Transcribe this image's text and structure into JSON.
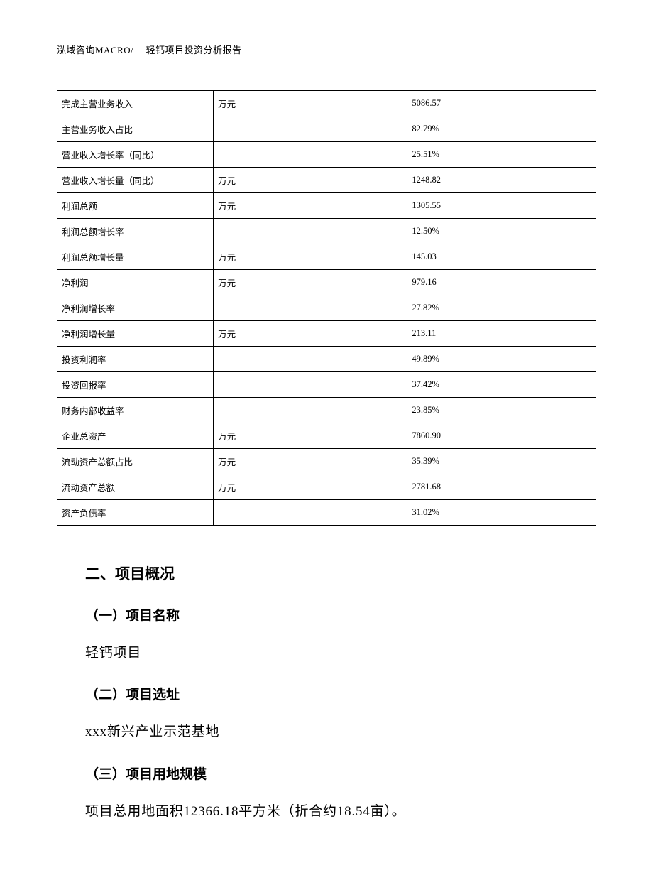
{
  "header": "泓域咨询MACRO/　 轻钙项目投资分析报告",
  "table": {
    "rows": [
      {
        "label": "完成主营业务收入",
        "unit": "万元",
        "value": "5086.57"
      },
      {
        "label": "主营业务收入占比",
        "unit": "",
        "value": "82.79%"
      },
      {
        "label": "营业收入增长率（同比）",
        "unit": "",
        "value": "25.51%"
      },
      {
        "label": "营业收入增长量（同比）",
        "unit": "万元",
        "value": "1248.82"
      },
      {
        "label": "利润总额",
        "unit": "万元",
        "value": "1305.55"
      },
      {
        "label": "利润总额增长率",
        "unit": "",
        "value": "12.50%"
      },
      {
        "label": "利润总额增长量",
        "unit": "万元",
        "value": "145.03"
      },
      {
        "label": "净利润",
        "unit": "万元",
        "value": "979.16"
      },
      {
        "label": "净利润增长率",
        "unit": "",
        "value": "27.82%"
      },
      {
        "label": "净利润增长量",
        "unit": "万元",
        "value": "213.11"
      },
      {
        "label": "投资利润率",
        "unit": "",
        "value": "49.89%"
      },
      {
        "label": "投资回报率",
        "unit": "",
        "value": "37.42%"
      },
      {
        "label": "财务内部收益率",
        "unit": "",
        "value": "23.85%"
      },
      {
        "label": "企业总资产",
        "unit": "万元",
        "value": "7860.90"
      },
      {
        "label": "流动资产总额占比",
        "unit": "万元",
        "value": "35.39%"
      },
      {
        "label": "流动资产总额",
        "unit": "万元",
        "value": "2781.68"
      },
      {
        "label": "资产负债率",
        "unit": "",
        "value": "31.02%"
      }
    ]
  },
  "sections": {
    "main_title": "二、项目概况",
    "sub1_title": "（一）项目名称",
    "sub1_text": "轻钙项目",
    "sub2_title": "（二）项目选址",
    "sub2_text": "xxx新兴产业示范基地",
    "sub3_title": "（三）项目用地规模",
    "sub3_text": "项目总用地面积12366.18平方米（折合约18.54亩）。"
  }
}
